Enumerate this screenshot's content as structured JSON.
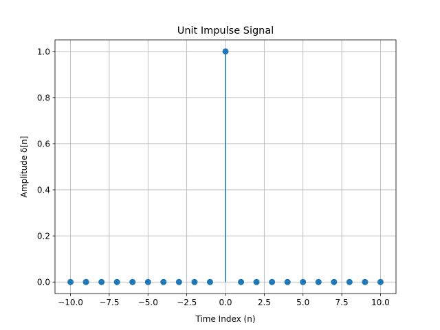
{
  "chart_data": {
    "type": "stem",
    "title": "Unit Impulse Signal",
    "xlabel": "Time Index (n)",
    "ylabel": "Amplitude δ[n]",
    "xlim": [
      -11,
      11
    ],
    "ylim": [
      -0.05,
      1.05
    ],
    "x_ticks": [
      -10.0,
      -7.5,
      -5.0,
      -2.5,
      0.0,
      2.5,
      5.0,
      7.5,
      10.0
    ],
    "x_tick_labels": [
      "−10.0",
      "−7.5",
      "−5.0",
      "−2.5",
      "0.0",
      "2.5",
      "5.0",
      "7.5",
      "10.0"
    ],
    "y_ticks": [
      0.0,
      0.2,
      0.4,
      0.6,
      0.8,
      1.0
    ],
    "y_tick_labels": [
      "0.0",
      "0.2",
      "0.4",
      "0.6",
      "0.8",
      "1.0"
    ],
    "grid": true,
    "series": [
      {
        "x": [
          -10,
          -9,
          -8,
          -7,
          -6,
          -5,
          -4,
          -3,
          -2,
          -1,
          0,
          1,
          2,
          3,
          4,
          5,
          6,
          7,
          8,
          9,
          10
        ],
        "y": [
          0,
          0,
          0,
          0,
          0,
          0,
          0,
          0,
          0,
          0,
          1,
          0,
          0,
          0,
          0,
          0,
          0,
          0,
          0,
          0,
          0
        ],
        "color": "#1f77b4"
      }
    ]
  }
}
